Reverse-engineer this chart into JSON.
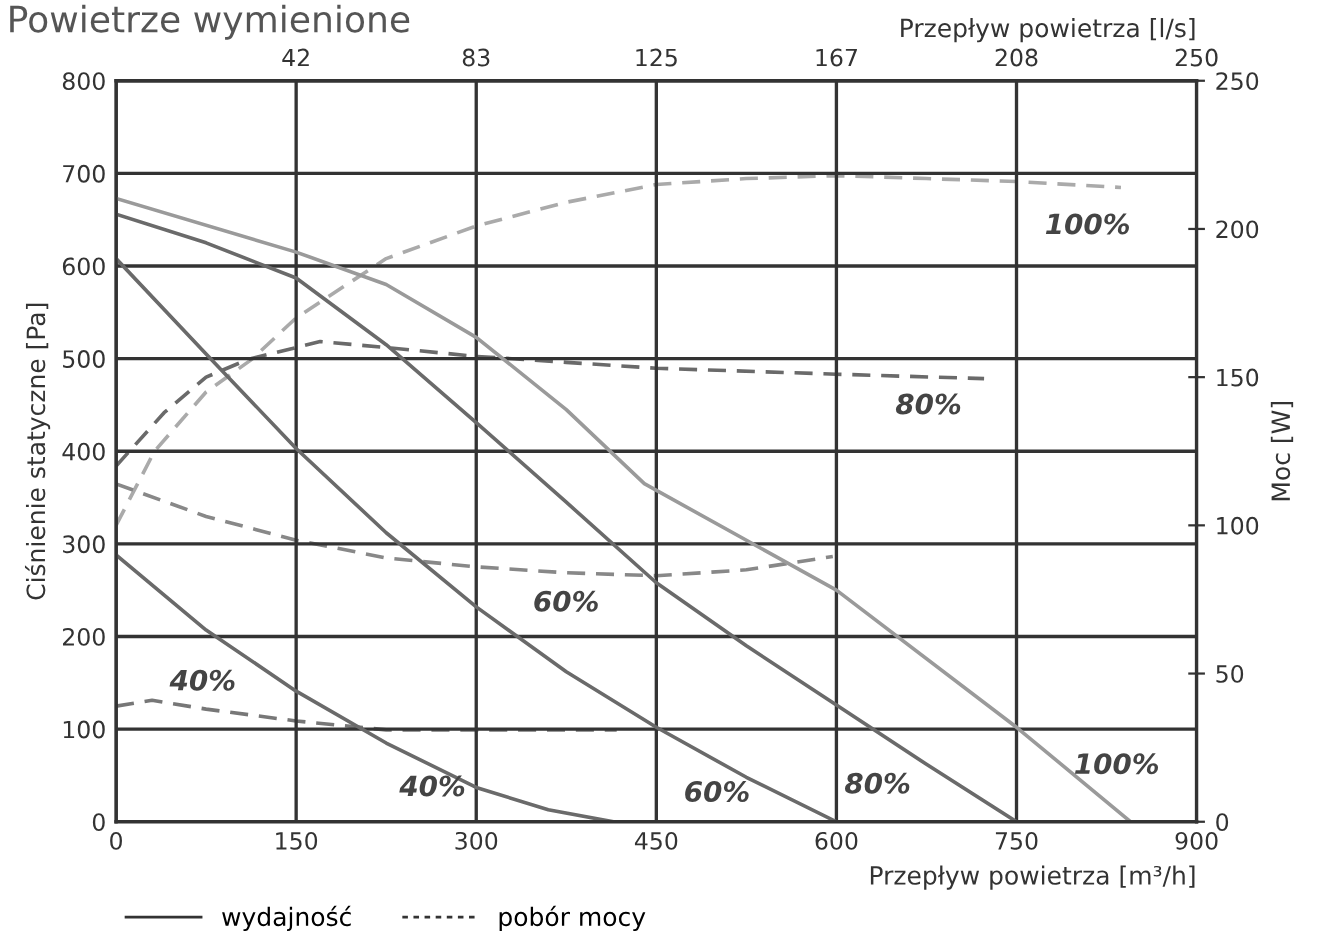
{
  "chart_data": {
    "type": "line",
    "title": "Powietrze wymienione",
    "xlabel": "Przepływ powietrza [m³/h]",
    "x2label": "Przepływ powietrza [l/s]",
    "ylabel": "Ciśnienie statyczne [Pa]",
    "y2label": "Moc [W]",
    "xlim": [
      0,
      900
    ],
    "xticks": [
      0,
      150,
      300,
      450,
      600,
      750,
      900
    ],
    "x2lim": [
      0,
      250
    ],
    "x2ticks": [
      {
        "value": 41.67,
        "label": "42"
      },
      {
        "value": 83.33,
        "label": "83"
      },
      {
        "value": 125,
        "label": "125"
      },
      {
        "value": 166.67,
        "label": "167"
      },
      {
        "value": 208.33,
        "label": "208"
      },
      {
        "value": 250,
        "label": "250"
      }
    ],
    "ylim": [
      0,
      800
    ],
    "yticks": [
      0,
      100,
      200,
      300,
      400,
      500,
      600,
      700,
      800
    ],
    "y2lim": [
      0,
      250
    ],
    "y2ticks": [
      0,
      50,
      100,
      150,
      200,
      250
    ],
    "grid": true,
    "legend": "bottom",
    "marker": "none",
    "series": [
      {
        "name": "100%",
        "color": "#9a9a9a",
        "line_style": "solid",
        "x": [
          0,
          150,
          225,
          300,
          375,
          440,
          600,
          750,
          845
        ],
        "values": [
          673,
          615,
          580,
          523,
          445,
          365,
          250,
          102,
          0
        ]
      },
      {
        "name": "80%",
        "color": "#6a6a6a",
        "line_style": "solid",
        "x": [
          0,
          75,
          150,
          225,
          300,
          375,
          450,
          525,
          600,
          675,
          750
        ],
        "values": [
          656,
          625,
          587,
          515,
          431,
          345,
          258,
          190,
          126,
          62,
          0
        ]
      },
      {
        "name": "60%",
        "color": "#6a6a6a",
        "line_style": "solid",
        "x": [
          0,
          75,
          150,
          225,
          300,
          375,
          450,
          525,
          600
        ],
        "values": [
          608,
          505,
          403,
          312,
          232,
          162,
          102,
          48,
          0
        ]
      },
      {
        "name": "40%",
        "color": "#6a6a6a",
        "line_style": "solid",
        "x": [
          0,
          75,
          150,
          225,
          300,
          360,
          414
        ],
        "values": [
          288,
          207,
          141,
          85,
          37,
          13,
          0
        ]
      },
      {
        "name": "100%",
        "color": "#aaaaaa",
        "line_style": "dashed",
        "axis": "y2",
        "x": [
          0,
          32,
          75,
          113,
          150,
          225,
          300,
          375,
          450,
          525,
          600,
          675,
          750,
          837
        ],
        "values": [
          100,
          125,
          145,
          156,
          170,
          190,
          201,
          209,
          215,
          217,
          218,
          217,
          216,
          214
        ]
      },
      {
        "name": "80%",
        "color": "#6a6a6a",
        "line_style": "dashed",
        "axis": "y2",
        "x": [
          0,
          40,
          75,
          110,
          170,
          225,
          300,
          375,
          450,
          600,
          723
        ],
        "values": [
          120,
          138,
          150,
          156,
          162,
          160,
          157,
          155,
          153,
          151,
          149.5
        ]
      },
      {
        "name": "60%",
        "color": "#888888",
        "line_style": "dashed",
        "axis": "y2",
        "x": [
          0,
          75,
          150,
          225,
          300,
          375,
          450,
          525,
          597
        ],
        "values": [
          114,
          103,
          95,
          89,
          86,
          84,
          83,
          85,
          89.5
        ]
      },
      {
        "name": "40%",
        "color": "#777777",
        "line_style": "dashed",
        "axis": "y2",
        "x": [
          0,
          30,
          75,
          150,
          225,
          300,
          417
        ],
        "values": [
          39,
          41,
          38,
          34,
          31,
          31,
          31
        ]
      }
    ],
    "annotations": [
      "wydajność",
      "pobór mocy"
    ]
  }
}
